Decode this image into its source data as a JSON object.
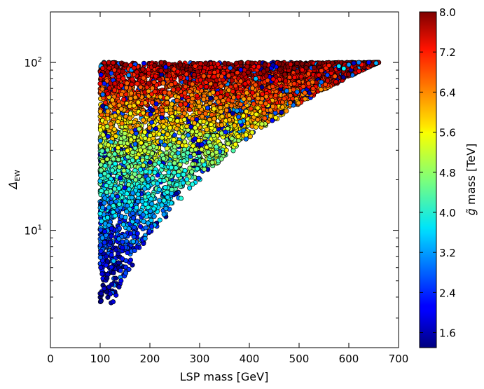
{
  "chart_data": {
    "type": "scatter",
    "xlabel": "LSP mass [GeV]",
    "ylabel": "Δ_EW",
    "ylabel_main": "Δ",
    "ylabel_sub": "EW",
    "xlim": [
      0,
      700
    ],
    "ylim": [
      2,
      200
    ],
    "yscale": "log",
    "xticks": [
      0,
      100,
      200,
      300,
      400,
      500,
      600,
      700
    ],
    "xtick_labels": [
      "0",
      "100",
      "200",
      "300",
      "400",
      "500",
      "600",
      "700"
    ],
    "yticks": [
      10,
      100
    ],
    "ytick_labels": [
      "10",
      "1",
      "10",
      "2"
    ],
    "ytick_base": [
      "10",
      "10"
    ],
    "ytick_exp": [
      "1",
      "2"
    ],
    "grid": false,
    "colorbar": {
      "label": "g̃ mass [TeV]",
      "label_glyph": "g̃",
      "label_text": " mass [TeV]",
      "range": [
        1.3,
        8.0
      ],
      "colormap": "jet",
      "ticks": [
        1.6,
        2.4,
        3.2,
        4.0,
        4.8,
        5.6,
        6.4,
        7.2,
        8.0
      ],
      "tick_labels": [
        "1.6",
        "2.4",
        "3.2",
        "4.0",
        "4.8",
        "5.6",
        "6.4",
        "7.2",
        "8.0"
      ]
    },
    "region": {
      "x_min": 100,
      "x_max": 660,
      "y_max": 100,
      "lower_boundary": [
        [
          130,
          3.8
        ],
        [
          150,
          5.2
        ],
        [
          175,
          7.0
        ],
        [
          200,
          9.2
        ],
        [
          250,
          14.0
        ],
        [
          300,
          20.0
        ],
        [
          350,
          27.0
        ],
        [
          400,
          35.0
        ],
        [
          450,
          45.0
        ],
        [
          500,
          56.0
        ],
        [
          550,
          68.0
        ],
        [
          600,
          82.0
        ],
        [
          660,
          100.0
        ]
      ]
    },
    "points": [
      [
        102,
        4.2,
        1.6
      ],
      [
        108,
        4.5,
        1.8
      ],
      [
        118,
        4.6,
        1.7
      ],
      [
        122,
        3.7,
        1.6
      ],
      [
        126,
        3.75,
        1.9
      ],
      [
        132,
        4.1,
        2.0
      ],
      [
        138,
        4.6,
        1.7
      ],
      [
        142,
        5.0,
        2.1
      ],
      [
        104,
        5.5,
        2.0
      ],
      [
        112,
        6.2,
        2.2
      ],
      [
        105,
        55,
        1.5
      ],
      [
        660,
        100,
        7.8
      ],
      [
        655,
        99,
        3.3
      ],
      [
        640,
        100,
        2.2
      ],
      [
        620,
        100,
        3.0
      ],
      [
        600,
        97,
        3.1
      ],
      [
        610,
        99,
        1.8
      ],
      [
        580,
        95,
        3.6
      ],
      [
        560,
        96,
        7.0
      ],
      [
        590,
        92,
        3.8
      ]
    ],
    "n_generated_points": 6000,
    "marker": {
      "edgecolor": "#000000"
    }
  }
}
